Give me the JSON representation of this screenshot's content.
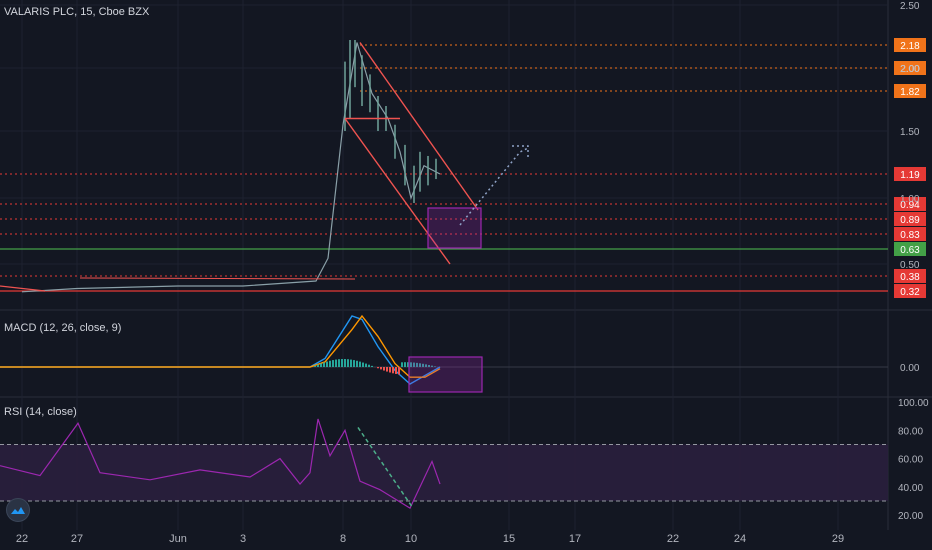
{
  "header": {
    "symbol_title": "VALARIS PLC, 15, Cboe BZX"
  },
  "colors": {
    "background": "#131722",
    "grid": "#1e2230",
    "axis_text": "#b2b5be",
    "level_orange": "#f0731a",
    "level_red": "#e53935",
    "level_green": "#43a047",
    "channel": "#ef5350",
    "box": "#9c27b0",
    "macd_line": "#2196f3",
    "signal_line": "#ff9800",
    "rsi_line": "#9c27b0",
    "rsi_band": "#2a1f3d"
  },
  "chart_data": [
    {
      "type": "candlestick",
      "pane": "price",
      "title": "VALARIS PLC, 15, Cboe BZX",
      "y_axis_ticks": [
        "2.50",
        "2.00",
        "1.50",
        "1.00",
        "0.50"
      ],
      "ylim": [
        0.2,
        2.5
      ],
      "x_axis_ticks": [
        "22",
        "27",
        "Jun",
        "3",
        "8",
        "10",
        "15",
        "17",
        "22",
        "24",
        "29"
      ],
      "price_levels": [
        {
          "label": "2.18",
          "value": 2.18,
          "color": "orange",
          "style": "dotted"
        },
        {
          "label": "2.00",
          "value": 2.0,
          "color": "orange",
          "style": "dotted"
        },
        {
          "label": "1.82",
          "value": 1.82,
          "color": "orange",
          "style": "dotted"
        },
        {
          "label": "1.19",
          "value": 1.19,
          "color": "red",
          "style": "dotted"
        },
        {
          "label": "0.94",
          "value": 0.94,
          "color": "red",
          "style": "dotted"
        },
        {
          "label": "0.89",
          "value": 0.89,
          "color": "red",
          "style": "dotted"
        },
        {
          "label": "0.83",
          "value": 0.83,
          "color": "red",
          "style": "dotted"
        },
        {
          "label": "0.63",
          "value": 0.63,
          "color": "green",
          "style": "solid"
        },
        {
          "label": "0.38",
          "value": 0.38,
          "color": "red",
          "style": "dotted"
        },
        {
          "label": "0.32",
          "value": 0.32,
          "color": "red",
          "style": "solid"
        }
      ],
      "price_path": [
        [
          "22",
          0.3
        ],
        [
          "27",
          0.33
        ],
        [
          "Jun",
          0.34
        ],
        [
          "3",
          0.34
        ],
        [
          "6",
          0.36
        ],
        [
          "7",
          0.55
        ],
        [
          "8",
          1.55
        ],
        [
          "8.4",
          2.2
        ],
        [
          "8.8",
          1.8
        ],
        [
          "9.2",
          1.6
        ],
        [
          "9.6",
          1.35
        ],
        [
          "10",
          1.0
        ],
        [
          "10.5",
          1.25
        ],
        [
          "11",
          1.19
        ]
      ],
      "annotations": [
        "descending channel",
        "target zone box",
        "projected breakout arrow"
      ]
    },
    {
      "type": "line",
      "pane": "macd",
      "title": "MACD (12, 26, close, 9)",
      "y_axis_ticks": [
        "0.00"
      ],
      "series": [
        {
          "name": "MACD",
          "values": [
            0,
            0,
            0,
            0.05,
            0.3,
            0.28,
            0.12,
            -0.02,
            -0.1,
            -0.05,
            0.0
          ]
        },
        {
          "name": "Signal",
          "values": [
            0,
            0,
            0,
            0.03,
            0.22,
            0.3,
            0.18,
            0.02,
            -0.06,
            -0.06,
            -0.01
          ]
        }
      ],
      "annotations": [
        "highlight box"
      ]
    },
    {
      "type": "line",
      "pane": "rsi",
      "title": "RSI (14, close)",
      "y_axis_ticks": [
        "100.00",
        "80.00",
        "60.00",
        "40.00",
        "20.00"
      ],
      "ylim": [
        15,
        100
      ],
      "bands": [
        70,
        30
      ],
      "series": [
        {
          "name": "RSI",
          "values": [
            55,
            48,
            85,
            50,
            45,
            52,
            47,
            60,
            42,
            50,
            88,
            62,
            80,
            44,
            38,
            25,
            40,
            58,
            42
          ]
        }
      ],
      "annotations": [
        "dashed trendline"
      ]
    }
  ]
}
